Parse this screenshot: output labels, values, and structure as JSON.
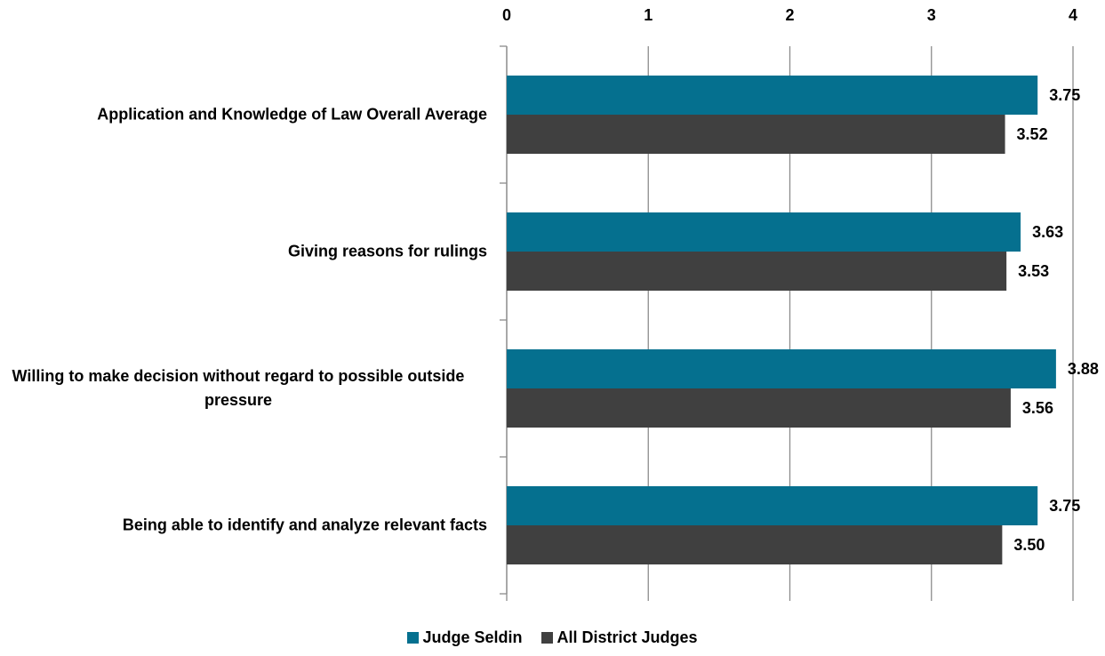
{
  "chart_data": {
    "type": "bar",
    "orientation": "horizontal",
    "categories": [
      "Application and Knowledge of Law Overall Average",
      "Giving reasons for rulings",
      "Willing to make decision without regard to possible outside pressure",
      "Being able to identify and analyze relevant facts"
    ],
    "series": [
      {
        "name": "Judge Seldin",
        "color": "#05708f",
        "values": [
          3.75,
          3.63,
          3.88,
          3.75
        ],
        "value_labels": [
          "3.75",
          "3.63",
          "3.88",
          "3.75"
        ]
      },
      {
        "name": "All District Judges",
        "color": "#404040",
        "values": [
          3.52,
          3.53,
          3.56,
          3.5
        ],
        "value_labels": [
          "3.52",
          "3.53",
          "3.56",
          "3.50"
        ]
      }
    ],
    "xlim": [
      0,
      4
    ],
    "xticks": [
      0,
      1,
      2,
      3,
      4
    ],
    "grid": true,
    "legend": "bottom"
  }
}
